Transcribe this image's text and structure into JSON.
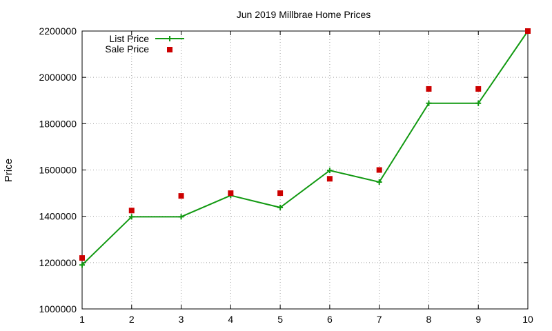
{
  "chart_data": {
    "type": "line",
    "title": "Jun 2019 Millbrae Home Prices",
    "xlabel": "",
    "ylabel": "Price",
    "x": [
      1,
      2,
      3,
      4,
      5,
      6,
      7,
      8,
      9,
      10
    ],
    "xlim": [
      1,
      10
    ],
    "ylim": [
      1000000,
      2200000
    ],
    "xticks": [
      "1",
      "2",
      "3",
      "4",
      "5",
      "6",
      "7",
      "8",
      "9",
      "10"
    ],
    "yticks": [
      "1000000",
      "1200000",
      "1400000",
      "1600000",
      "1800000",
      "2000000",
      "2200000"
    ],
    "grid": true,
    "legend_position": "top-left",
    "series": [
      {
        "name": "List Price",
        "style": "line-with-plus-markers",
        "color": "#119911",
        "values": [
          1190000,
          1398000,
          1398000,
          1490000,
          1438000,
          1598000,
          1548000,
          1888000,
          1888000,
          2200000
        ]
      },
      {
        "name": "Sale Price",
        "style": "square-markers",
        "color": "#cc0000",
        "values": [
          1220000,
          1425000,
          1488000,
          1500000,
          1500000,
          1562000,
          1600000,
          1950000,
          1950000,
          2200000
        ]
      }
    ]
  }
}
